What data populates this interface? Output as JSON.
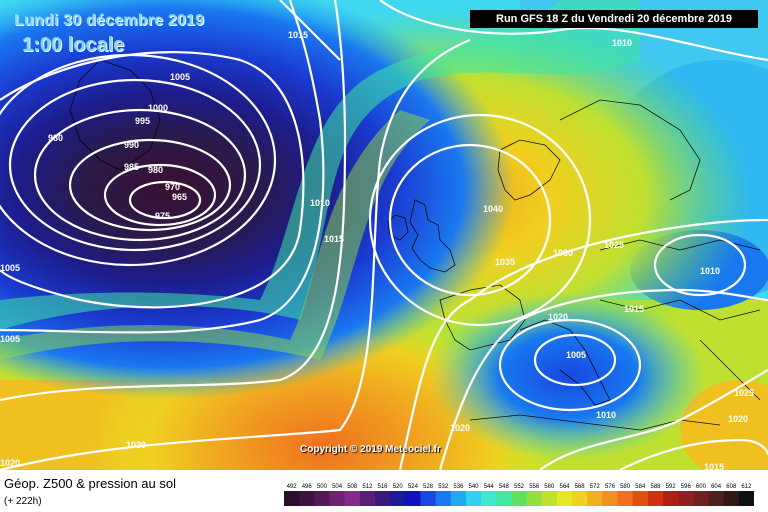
{
  "header": {
    "date": "Lundi 30 décembre 2019",
    "local_time": "1:00 locale",
    "run": "Run GFS 18 Z du Vendredi 20 décembre 2019"
  },
  "copyright": "Copyright © 2019 Meteociel.fr",
  "product": {
    "title": "Géop. Z500 & pression au sol",
    "lead": "(+ 222h)"
  },
  "isobar_labels": [
    "1015",
    "1010",
    "1005",
    "1000",
    "995",
    "990",
    "985",
    "980",
    "980",
    "970",
    "965",
    "975",
    "1010",
    "1015",
    "1005",
    "1005",
    "1040",
    "1035",
    "1030",
    "1025",
    "1020",
    "1015",
    "1010",
    "1005",
    "1010",
    "1025",
    "1020",
    "1015",
    "1020",
    "1020",
    "1020"
  ],
  "legend": {
    "values": [
      "492",
      "496",
      "500",
      "504",
      "508",
      "512",
      "516",
      "520",
      "524",
      "528",
      "532",
      "536",
      "540",
      "544",
      "548",
      "552",
      "556",
      "560",
      "564",
      "568",
      "572",
      "576",
      "580",
      "584",
      "588",
      "592",
      "596",
      "600",
      "604",
      "608",
      "612"
    ],
    "colors": [
      "#2a0f2a",
      "#3d1340",
      "#541a58",
      "#6e2273",
      "#862a8a",
      "#5a1e78",
      "#3a1a7a",
      "#1a1a9a",
      "#1010c0",
      "#1848e0",
      "#1878f0",
      "#20a8f0",
      "#30d0f0",
      "#40e8d0",
      "#40e8a0",
      "#60e060",
      "#90e040",
      "#c0e030",
      "#e8e820",
      "#f0d020",
      "#f0b020",
      "#f09020",
      "#f07020",
      "#e05010",
      "#d03010",
      "#b02010",
      "#902020",
      "#702020",
      "#502020",
      "#301818",
      "#101010"
    ]
  }
}
